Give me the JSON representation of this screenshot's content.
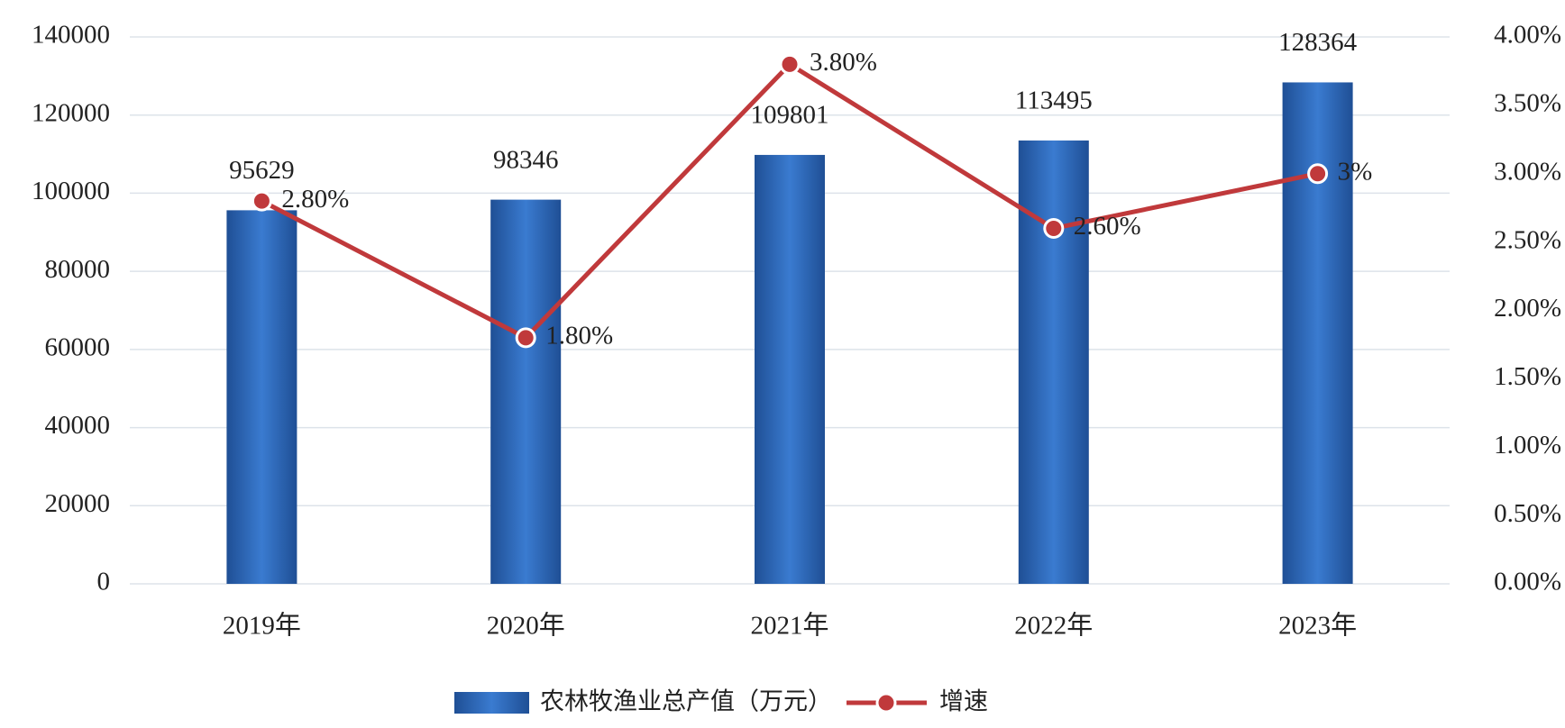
{
  "chart_data": {
    "type": "bar",
    "categories": [
      "2019年",
      "2020年",
      "2021年",
      "2022年",
      "2023年"
    ],
    "series": [
      {
        "name": "农林牧渔业总产值（万元）",
        "type": "bar",
        "color": "#2a66b8",
        "values": [
          95629,
          98346,
          109801,
          113495,
          128364
        ]
      },
      {
        "name": "增速",
        "type": "line",
        "axis": "y2",
        "color": "#c0393b",
        "values": [
          2.8,
          1.8,
          3.8,
          2.6,
          3
        ],
        "value_labels": [
          "2.80%",
          "1.80%",
          "3.80%",
          "2.60%",
          "3%"
        ]
      }
    ],
    "ylim": [
      0,
      140000
    ],
    "yticks": [
      0,
      20000,
      40000,
      60000,
      80000,
      100000,
      120000,
      140000
    ],
    "y2lim": [
      0,
      4
    ],
    "y2ticks": [
      {
        "value": 0,
        "label": "0.00%"
      },
      {
        "value": 0.5,
        "label": "0.50%"
      },
      {
        "value": 1,
        "label": "1.00%"
      },
      {
        "value": 1.5,
        "label": "1.50%"
      },
      {
        "value": 2,
        "label": "2.00%"
      },
      {
        "value": 2.5,
        "label": "2.50%"
      },
      {
        "value": 3,
        "label": "3.00%"
      },
      {
        "value": 3.5,
        "label": "3.50%"
      },
      {
        "value": 4,
        "label": "4.00%"
      }
    ],
    "grid": true,
    "legend": "bottom"
  }
}
